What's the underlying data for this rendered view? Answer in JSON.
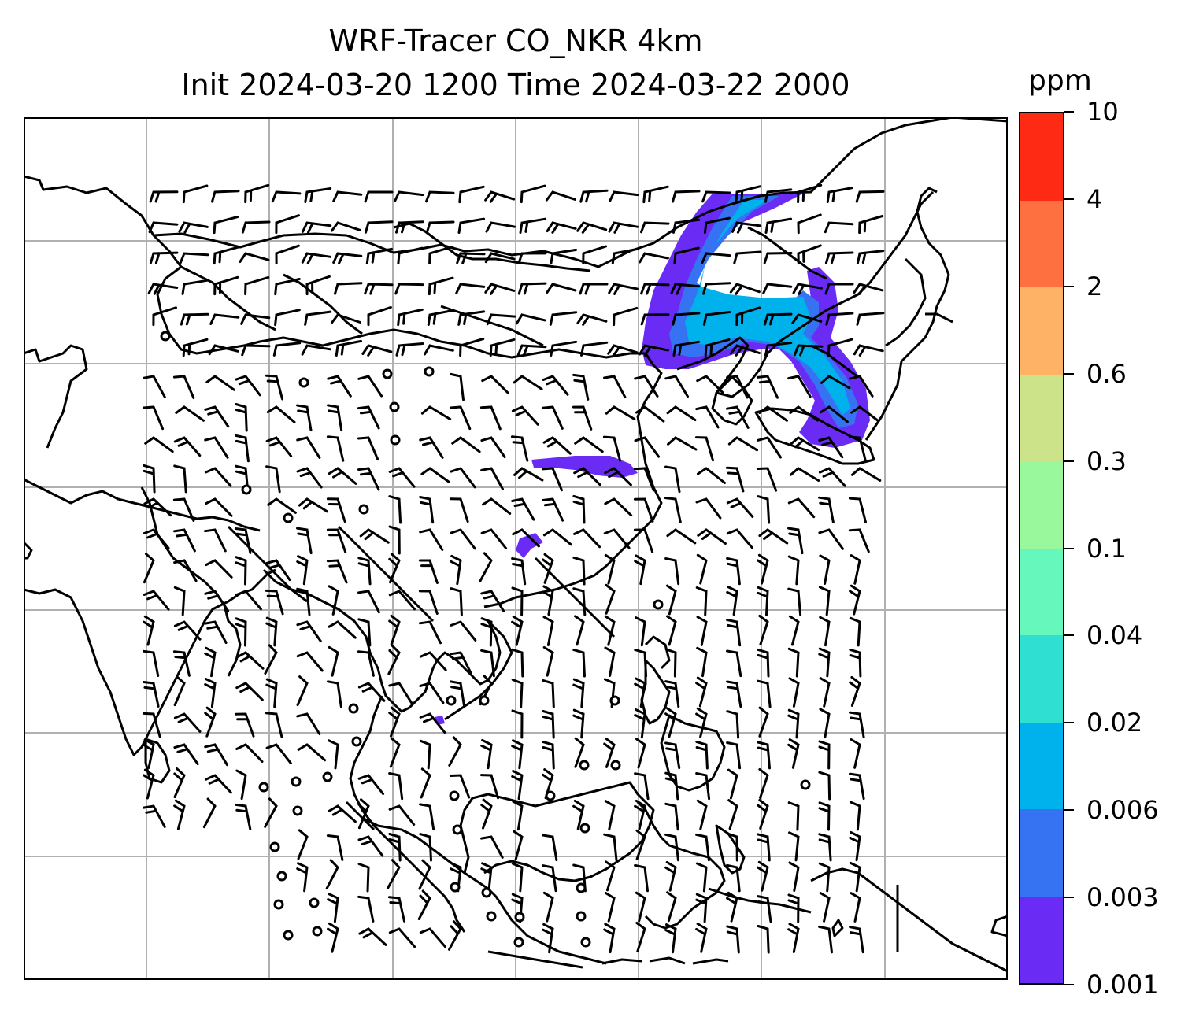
{
  "title": {
    "line1": "WRF-Tracer CO_NKR 4km",
    "line2": "Init 2024-03-20 1200 Time 2024-03-22 2000"
  },
  "colorbar": {
    "unit": "ppm",
    "levels": [
      "0.001",
      "0.003",
      "0.006",
      "0.02",
      "0.04",
      "0.1",
      "0.3",
      "0.6",
      "2",
      "4",
      "10"
    ],
    "colors": [
      "#6a2cf5",
      "#3673f3",
      "#00b2ec",
      "#2edfd2",
      "#66f7bc",
      "#99f79c",
      "#cde389",
      "#fdb265",
      "#ff7040",
      "#ff2a14"
    ]
  },
  "map": {
    "grid_color": "#b0b0b0",
    "coast_color": "#000000",
    "plume_color_low": "#6a2cf5",
    "plume_color_mid": "#3673f3",
    "plume_color_high": "#00b2ec"
  }
}
